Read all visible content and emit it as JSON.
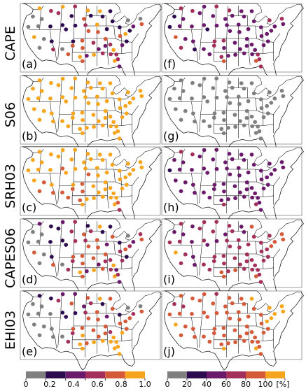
{
  "rows": [
    {
      "label": "CAPE",
      "left_panel": "(a)",
      "right_panel": "(f)"
    },
    {
      "label": "S06",
      "left_panel": "(b)",
      "right_panel": "(g)"
    },
    {
      "label": "SRH03",
      "left_panel": "(c)",
      "right_panel": "(h)"
    },
    {
      "label": "CAPES06",
      "left_panel": "(d)",
      "right_panel": "(i)"
    },
    {
      "label": "EHI03",
      "left_panel": "(e)",
      "right_panel": "(j)"
    }
  ],
  "colorbars": {
    "left": {
      "ticks": [
        "0",
        "0.2",
        "0.4",
        "0.6",
        "0.8",
        "1.0"
      ],
      "unit": ""
    },
    "right": {
      "ticks": [
        "0",
        "20",
        "40",
        "60",
        "80",
        "100",
        "[%]"
      ],
      "unit": "[%]"
    },
    "colors": [
      "#7f7f7f",
      "#2d0b4f",
      "#6b1a6b",
      "#a3305a",
      "#d55a3a",
      "#f7a51e"
    ]
  },
  "chart_data": {
    "type": "scatter",
    "description_of_marks": "station markers colored by category",
    "category_colors": [
      "#7f7f7f",
      "#2d0b4f",
      "#6b1a6b",
      "#a3305a",
      "#d55a3a",
      "#f7a51e"
    ],
    "left_scale": [
      0,
      0.2,
      0.4,
      0.6,
      0.8,
      1.0
    ],
    "right_scale": [
      0,
      20,
      40,
      60,
      80,
      100
    ],
    "stations_lonlat": [
      [
        -117.2,
        47.6
      ],
      [
        -111.9,
        46.6
      ],
      [
        -106.5,
        48.2
      ],
      [
        -100.8,
        48.3
      ],
      [
        -94.9,
        46.8
      ],
      [
        -89.3,
        46.5
      ],
      [
        -84.5,
        46.5
      ],
      [
        -120.3,
        44.5
      ],
      [
        -116.2,
        43.6
      ],
      [
        -108.5,
        45.8
      ],
      [
        -102.4,
        44.7
      ],
      [
        -96.7,
        43.6
      ],
      [
        -93.5,
        44.8
      ],
      [
        -88.1,
        44.5
      ],
      [
        -83.5,
        42.7
      ],
      [
        -76.3,
        43.1
      ],
      [
        -70.6,
        43.7
      ],
      [
        -122.4,
        40.6
      ],
      [
        -117.8,
        40.9
      ],
      [
        -112.2,
        40.8
      ],
      [
        -106.6,
        41.3
      ],
      [
        -100.7,
        41.1
      ],
      [
        -96.0,
        41.3
      ],
      [
        -90.6,
        41.5
      ],
      [
        -86.1,
        39.8
      ],
      [
        -80.2,
        40.5
      ],
      [
        -73.9,
        40.8
      ],
      [
        -70.0,
        41.7
      ],
      [
        -119.7,
        36.8
      ],
      [
        -115.2,
        36.1
      ],
      [
        -111.6,
        35.2
      ],
      [
        -105.0,
        39.7
      ],
      [
        -101.7,
        35.2
      ],
      [
        -97.5,
        35.5
      ],
      [
        -94.6,
        39.1
      ],
      [
        -90.2,
        38.7
      ],
      [
        -86.7,
        36.1
      ],
      [
        -84.5,
        34.0
      ],
      [
        -80.0,
        37.2
      ],
      [
        -77.5,
        38.0
      ],
      [
        -75.5,
        39.2
      ],
      [
        -117.2,
        32.8
      ],
      [
        -110.9,
        32.2
      ],
      [
        -106.7,
        32.3
      ],
      [
        -101.9,
        33.6
      ],
      [
        -97.3,
        32.7
      ],
      [
        -92.3,
        34.7
      ],
      [
        -89.9,
        32.3
      ],
      [
        -86.8,
        33.5
      ],
      [
        -83.0,
        32.0
      ],
      [
        -79.0,
        33.8
      ],
      [
        -77.0,
        35.2
      ],
      [
        -104.0,
        30.4
      ],
      [
        -98.5,
        29.4
      ],
      [
        -95.4,
        29.8
      ],
      [
        -92.1,
        30.2
      ],
      [
        -88.0,
        30.7
      ],
      [
        -84.3,
        30.4
      ],
      [
        -81.7,
        30.3
      ],
      [
        -80.3,
        25.8
      ],
      [
        -82.5,
        27.9
      ],
      [
        -97.4,
        27.8
      ],
      [
        -81.0,
        28.5
      ]
    ],
    "panels": {
      "a": [
        5,
        3,
        5,
        3,
        5,
        5,
        1,
        0,
        0,
        3,
        1,
        4,
        1,
        1,
        1,
        0,
        0,
        0,
        0,
        1,
        1,
        1,
        3,
        5,
        1,
        1,
        2,
        4,
        5,
        0,
        1,
        1,
        1,
        4,
        4,
        4,
        4,
        3,
        4,
        5,
        1,
        0,
        3,
        0,
        4,
        4,
        3,
        2,
        2,
        5,
        2,
        1,
        4,
        5,
        2,
        5,
        3,
        3,
        3,
        2,
        5,
        4,
        3
      ],
      "b": [
        5,
        5,
        5,
        5,
        5,
        5,
        5,
        5,
        5,
        5,
        5,
        5,
        5,
        5,
        5,
        5,
        5,
        5,
        5,
        5,
        5,
        5,
        5,
        5,
        5,
        5,
        5,
        5,
        5,
        5,
        5,
        5,
        5,
        5,
        5,
        5,
        5,
        5,
        5,
        5,
        5,
        5,
        5,
        5,
        5,
        5,
        5,
        5,
        5,
        5,
        5,
        5,
        5,
        5,
        5,
        5,
        5,
        5,
        5,
        5,
        5,
        5,
        5
      ],
      "c": [
        5,
        5,
        5,
        5,
        5,
        5,
        5,
        5,
        5,
        5,
        5,
        5,
        5,
        5,
        5,
        5,
        5,
        5,
        5,
        5,
        4,
        5,
        5,
        5,
        5,
        5,
        5,
        5,
        5,
        4,
        5,
        5,
        5,
        4,
        4,
        5,
        5,
        5,
        5,
        5,
        5,
        4,
        4,
        4,
        4,
        4,
        5,
        5,
        5,
        5,
        5,
        5,
        4,
        4,
        5,
        5,
        5,
        5,
        5,
        3,
        5,
        5,
        4
      ],
      "d": [
        2,
        1,
        2,
        3,
        1,
        5,
        1,
        0,
        0,
        1,
        3,
        4,
        3,
        1,
        4,
        0,
        3,
        0,
        0,
        1,
        1,
        3,
        3,
        4,
        2,
        1,
        2,
        4,
        4,
        0,
        1,
        1,
        4,
        4,
        4,
        4,
        4,
        3,
        3,
        4,
        3,
        0,
        4,
        0,
        3,
        4,
        4,
        2,
        3,
        5,
        3,
        1,
        3,
        5,
        2,
        5,
        4,
        3,
        2,
        2,
        5,
        4,
        3
      ],
      "e": [
        1,
        1,
        2,
        2,
        4,
        5,
        4,
        0,
        0,
        3,
        4,
        2,
        3,
        1,
        4,
        0,
        0,
        0,
        0,
        0,
        1,
        1,
        3,
        4,
        2,
        1,
        3,
        4,
        0,
        0,
        0,
        1,
        4,
        4,
        4,
        4,
        4,
        3,
        4,
        4,
        4,
        0,
        0,
        0,
        3,
        5,
        4,
        4,
        4,
        5,
        5,
        4,
        3,
        5,
        4,
        5,
        5,
        5,
        5,
        5,
        5,
        5,
        5
      ],
      "f": [
        3,
        3,
        2,
        3,
        3,
        2,
        2,
        1,
        2,
        2,
        2,
        2,
        2,
        2,
        2,
        3,
        3,
        1,
        2,
        2,
        2,
        2,
        2,
        2,
        2,
        2,
        2,
        2,
        4,
        2,
        2,
        1,
        3,
        3,
        2,
        2,
        2,
        2,
        2,
        2,
        2,
        3,
        1,
        2,
        3,
        2,
        2,
        2,
        2,
        2,
        2,
        2,
        2,
        3,
        2,
        2,
        2,
        2,
        3,
        3,
        4,
        4,
        3
      ],
      "g": [
        0,
        0,
        0,
        0,
        0,
        0,
        0,
        0,
        0,
        0,
        0,
        0,
        0,
        0,
        0,
        0,
        0,
        0,
        0,
        0,
        0,
        0,
        0,
        0,
        0,
        0,
        0,
        0,
        0,
        0,
        0,
        0,
        0,
        0,
        0,
        0,
        0,
        0,
        0,
        0,
        0,
        0,
        0,
        0,
        0,
        0,
        0,
        0,
        0,
        0,
        0,
        0,
        0,
        0,
        0,
        0,
        0,
        0,
        0,
        0,
        0,
        0,
        0
      ],
      "h": [
        3,
        3,
        2,
        2,
        2,
        2,
        2,
        2,
        2,
        2,
        2,
        2,
        2,
        2,
        2,
        2,
        2,
        1,
        2,
        2,
        2,
        2,
        2,
        2,
        2,
        2,
        2,
        2,
        2,
        2,
        2,
        2,
        2,
        2,
        2,
        2,
        2,
        2,
        2,
        2,
        2,
        2,
        2,
        2,
        2,
        2,
        2,
        2,
        2,
        2,
        2,
        2,
        2,
        2,
        2,
        2,
        2,
        2,
        2,
        2,
        3,
        3,
        2
      ],
      "i": [
        3,
        2,
        3,
        3,
        3,
        2,
        4,
        2,
        2,
        3,
        3,
        2,
        3,
        2,
        3,
        3,
        4,
        3,
        3,
        2,
        3,
        2,
        3,
        3,
        3,
        3,
        4,
        4,
        5,
        3,
        2,
        2,
        3,
        3,
        3,
        3,
        3,
        3,
        3,
        3,
        4,
        3,
        2,
        3,
        3,
        3,
        3,
        3,
        3,
        3,
        3,
        3,
        3,
        4,
        3,
        4,
        3,
        3,
        3,
        3,
        4,
        4,
        3
      ],
      "j": [
        4,
        4,
        4,
        3,
        4,
        4,
        5,
        3,
        3,
        4,
        4,
        4,
        4,
        4,
        4,
        5,
        5,
        4,
        4,
        4,
        4,
        4,
        4,
        4,
        4,
        4,
        5,
        5,
        5,
        4,
        4,
        4,
        4,
        4,
        4,
        4,
        4,
        4,
        4,
        5,
        5,
        4,
        4,
        4,
        4,
        4,
        4,
        4,
        4,
        4,
        4,
        4,
        4,
        4,
        4,
        4,
        4,
        4,
        4,
        4,
        5,
        5,
        4
      ]
    }
  }
}
